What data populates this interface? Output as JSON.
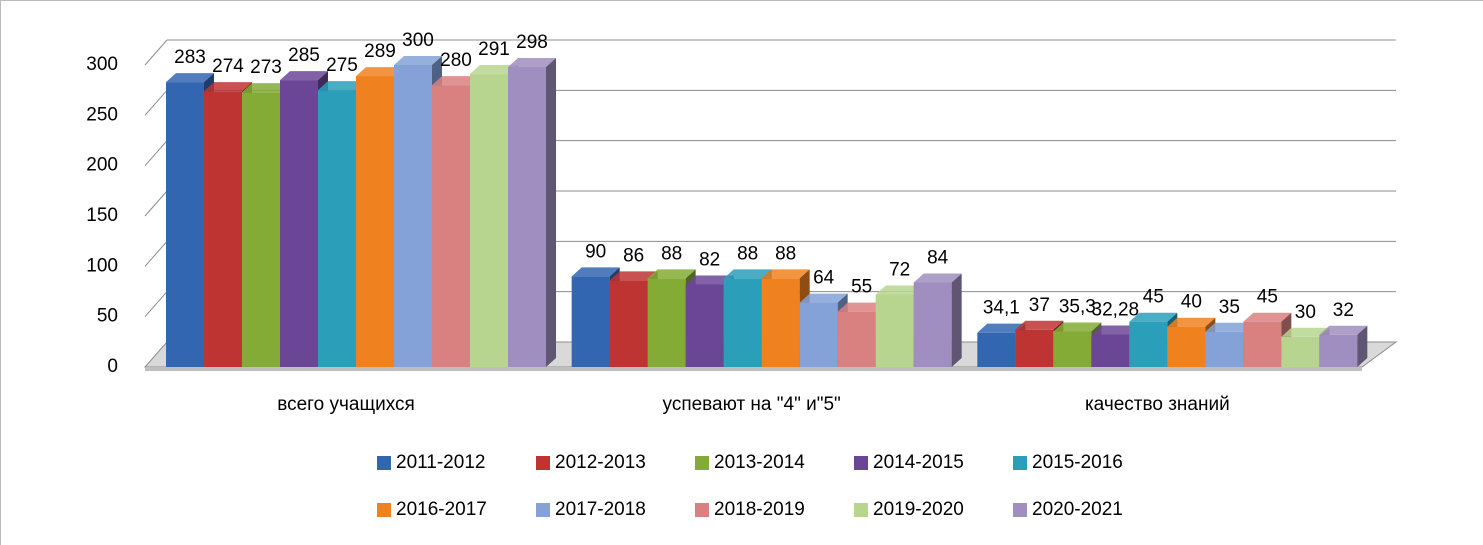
{
  "chart_data": {
    "type": "bar3d",
    "categories": [
      "всего учащихся",
      "успевают на \"4\" и\"5\"",
      "качество знаний"
    ],
    "series": [
      {
        "name": "2011-2012",
        "color": "#3366b0",
        "values": [
          283,
          90,
          34.1
        ],
        "value_labels": [
          "283",
          "90",
          "34,1"
        ]
      },
      {
        "name": "2012-2013",
        "color": "#be3433",
        "values": [
          274,
          86,
          37
        ]
      },
      {
        "name": "2013-2014",
        "color": "#83ab35",
        "values": [
          273,
          88,
          35.3
        ],
        "value_labels": [
          "273",
          "88",
          "35,3"
        ]
      },
      {
        "name": "2014-2015",
        "color": "#6b4696",
        "values": [
          285,
          82,
          32.28
        ],
        "value_labels": [
          "285",
          "82",
          "32,28"
        ]
      },
      {
        "name": "2015-2016",
        "color": "#2b9fba",
        "values": [
          275,
          88,
          45
        ]
      },
      {
        "name": "2016-2017",
        "color": "#f0811f",
        "values": [
          289,
          88,
          40
        ]
      },
      {
        "name": "2017-2018",
        "color": "#84a2d8",
        "values": [
          300,
          64,
          35
        ]
      },
      {
        "name": "2018-2019",
        "color": "#d98180",
        "values": [
          280,
          55,
          45
        ]
      },
      {
        "name": "2019-2020",
        "color": "#b7d58e",
        "values": [
          291,
          72,
          30
        ]
      },
      {
        "name": "2020-2021",
        "color": "#a08ec0",
        "values": [
          298,
          84,
          32
        ]
      }
    ],
    "ylim": [
      0,
      300
    ],
    "yticks": [
      0,
      50,
      100,
      150,
      200,
      250,
      300
    ],
    "grid": true,
    "legend": "bottom"
  }
}
